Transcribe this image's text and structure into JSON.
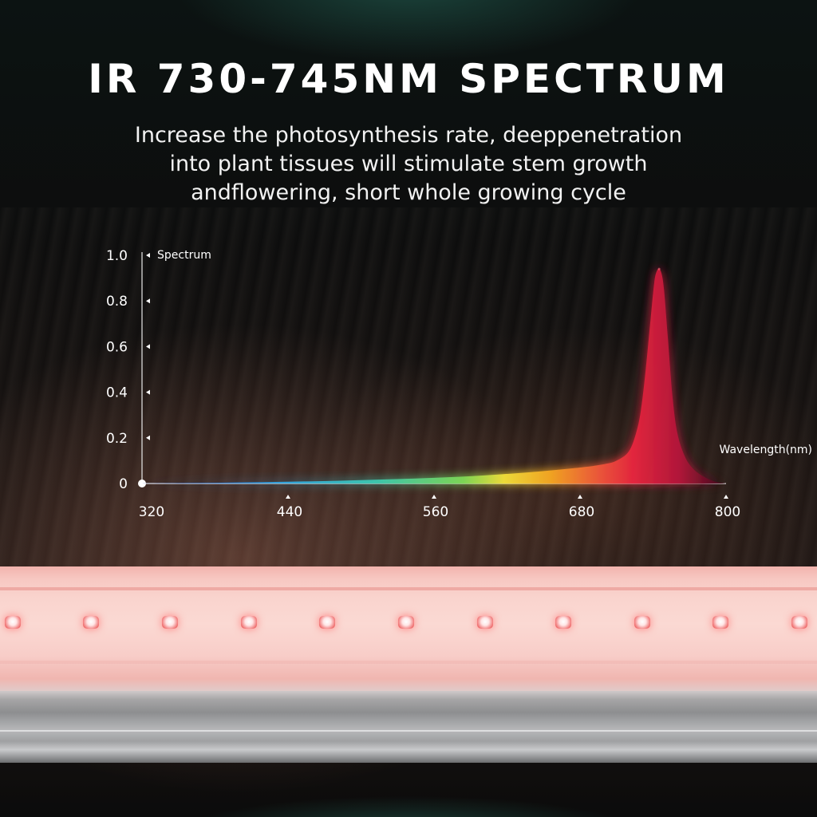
{
  "title": "IR 730-745NM SPECTRUM",
  "subtitle_lines": [
    "Increase the photosynthesis rate, deeppenetration",
    "into plant tissues will stimulate stem growth",
    "andflowering, short whole growing cycle"
  ],
  "chart_data": {
    "type": "area",
    "ylabel": "Spectrum",
    "xlabel": "Wavelength(nm)",
    "xlim": [
      320,
      800
    ],
    "ylim": [
      0,
      1.0
    ],
    "x_ticks": [
      320,
      440,
      560,
      680,
      800
    ],
    "x_tick_labels": [
      "320",
      "440",
      "560",
      "680",
      "800"
    ],
    "y_ticks": [
      0,
      0.2,
      0.4,
      0.6,
      0.8,
      1.0
    ],
    "y_tick_labels": [
      "0",
      "0.2",
      "0.4",
      "0.6",
      "0.8",
      "1.0"
    ],
    "grid": false,
    "peak_wavelength": 745,
    "x": [
      320,
      360,
      400,
      440,
      480,
      520,
      560,
      600,
      640,
      680,
      700,
      710,
      720,
      726,
      730,
      734,
      738,
      741,
      743,
      745,
      747,
      749,
      752,
      756,
      760,
      766,
      772,
      780,
      790,
      800
    ],
    "values": [
      0.0,
      0.002,
      0.005,
      0.008,
      0.012,
      0.018,
      0.025,
      0.035,
      0.05,
      0.07,
      0.085,
      0.1,
      0.14,
      0.22,
      0.32,
      0.5,
      0.72,
      0.88,
      0.93,
      0.94,
      0.92,
      0.85,
      0.65,
      0.38,
      0.22,
      0.12,
      0.07,
      0.035,
      0.01,
      0.0
    ],
    "gradient_colors": [
      "#3a5bd6",
      "#35a8e0",
      "#3cc9b0",
      "#7ed957",
      "#f2e03a",
      "#f5a623",
      "#f05a3a",
      "#e8273f",
      "#b5163a",
      "#3a0c1c"
    ]
  }
}
